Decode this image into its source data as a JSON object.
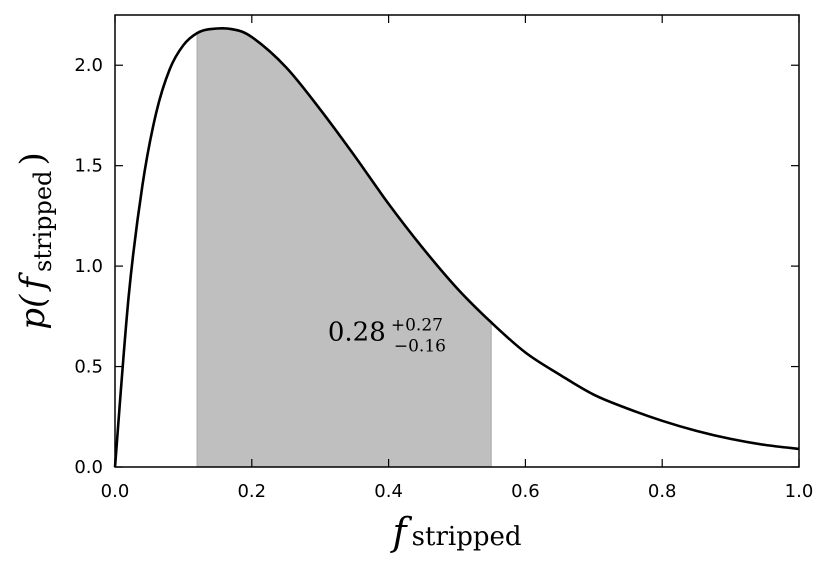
{
  "chart_data": {
    "type": "area",
    "title": "",
    "xlabel": {
      "main": "f",
      "sub": "stripped"
    },
    "ylabel": {
      "func": "p(",
      "main": "f",
      "sub": "stripped",
      "close": ")"
    },
    "xlim": [
      0.0,
      1.0
    ],
    "ylim": [
      0.0,
      2.25
    ],
    "grid": false,
    "x_ticks": [
      0.0,
      0.2,
      0.4,
      0.6,
      0.8,
      1.0
    ],
    "x_tick_labels": [
      "0.0",
      "0.2",
      "0.4",
      "0.6",
      "0.8",
      "1.0"
    ],
    "y_ticks": [
      0.0,
      0.5,
      1.0,
      1.5,
      2.0
    ],
    "y_tick_labels": [
      "0.0",
      "0.5",
      "1.0",
      "1.5",
      "2.0"
    ],
    "series": [
      {
        "x": [
          0.0,
          0.02,
          0.04,
          0.06,
          0.08,
          0.1,
          0.12,
          0.14,
          0.17,
          0.2,
          0.25,
          0.3,
          0.35,
          0.4,
          0.45,
          0.5,
          0.55,
          0.6,
          0.65,
          0.7,
          0.75,
          0.8,
          0.85,
          0.9,
          0.95,
          1.0
        ],
        "y": [
          0.0,
          0.85,
          1.4,
          1.76,
          1.98,
          2.1,
          2.16,
          2.18,
          2.18,
          2.14,
          1.99,
          1.78,
          1.55,
          1.31,
          1.09,
          0.89,
          0.72,
          0.57,
          0.46,
          0.36,
          0.29,
          0.23,
          0.18,
          0.14,
          0.11,
          0.09
        ]
      }
    ],
    "shaded_interval": {
      "x_start": 0.12,
      "x_end": 0.55,
      "color": "#bfbfbf"
    },
    "annotation": {
      "value": "0.28",
      "sup": "+0.27",
      "sub": "−0.16",
      "x": 0.32,
      "y": 0.7
    }
  }
}
